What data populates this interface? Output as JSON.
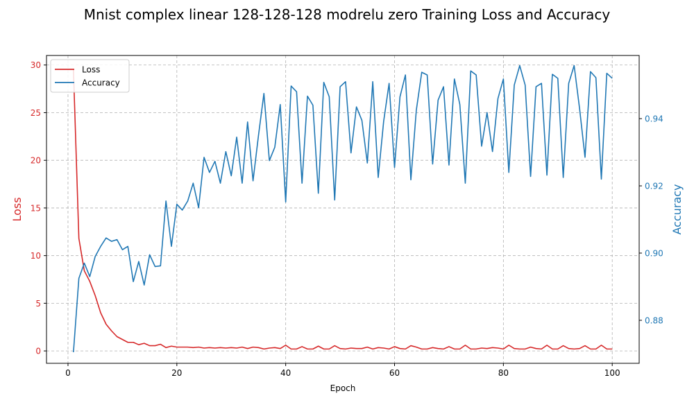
{
  "chart_data": {
    "type": "line",
    "title": "Mnist complex linear 128-128-128 modrelu zero Training Loss and Accuracy",
    "xlabel": "Epoch",
    "ylabel_left": "Loss",
    "ylabel_right": "Accuracy",
    "xlim": [
      -3.95,
      104.95
    ],
    "ylim_left": [
      -1.3,
      31.0
    ],
    "ylim_right": [
      0.8672,
      0.9588
    ],
    "xticks": [
      0,
      20,
      40,
      60,
      80,
      100
    ],
    "yticks_left": [
      0,
      5,
      10,
      15,
      20,
      25,
      30
    ],
    "yticks_right": [
      0.88,
      0.9,
      0.92,
      0.94
    ],
    "grid": true,
    "legend_position": "top-left",
    "colors": {
      "loss": "#d62728",
      "accuracy": "#1f77b4"
    },
    "series": [
      {
        "name": "Loss",
        "axis": "left",
        "color": "#d62728",
        "x_start": 1,
        "values": [
          29.5,
          11.8,
          8.4,
          7.3,
          5.8,
          4.0,
          2.8,
          2.1,
          1.5,
          1.2,
          0.9,
          0.9,
          0.65,
          0.8,
          0.55,
          0.55,
          0.7,
          0.35,
          0.5,
          0.4,
          0.4,
          0.4,
          0.35,
          0.4,
          0.3,
          0.35,
          0.3,
          0.35,
          0.3,
          0.35,
          0.3,
          0.4,
          0.25,
          0.4,
          0.35,
          0.2,
          0.3,
          0.35,
          0.25,
          0.6,
          0.2,
          0.2,
          0.45,
          0.2,
          0.2,
          0.5,
          0.2,
          0.2,
          0.55,
          0.25,
          0.2,
          0.3,
          0.25,
          0.25,
          0.4,
          0.2,
          0.35,
          0.3,
          0.2,
          0.45,
          0.25,
          0.2,
          0.55,
          0.4,
          0.2,
          0.2,
          0.35,
          0.25,
          0.2,
          0.45,
          0.2,
          0.2,
          0.6,
          0.2,
          0.2,
          0.3,
          0.25,
          0.35,
          0.3,
          0.2,
          0.6,
          0.25,
          0.2,
          0.2,
          0.4,
          0.25,
          0.2,
          0.6,
          0.2,
          0.2,
          0.55,
          0.25,
          0.2,
          0.25,
          0.55,
          0.2,
          0.2,
          0.6,
          0.2,
          0.2
        ]
      },
      {
        "name": "Accuracy",
        "axis": "right",
        "color": "#1f77b4",
        "x_start": 1,
        "values": [
          0.8705,
          0.8925,
          0.897,
          0.893,
          0.899,
          0.902,
          0.9045,
          0.9035,
          0.904,
          0.901,
          0.902,
          0.8915,
          0.8975,
          0.8905,
          0.8995,
          0.896,
          0.8962,
          0.9155,
          0.902,
          0.9145,
          0.9128,
          0.9155,
          0.9208,
          0.9135,
          0.9285,
          0.924,
          0.9273,
          0.9208,
          0.9302,
          0.923,
          0.9345,
          0.9208,
          0.939,
          0.9215,
          0.935,
          0.9475,
          0.9275,
          0.9315,
          0.9442,
          0.9152,
          0.9497,
          0.948,
          0.9208,
          0.9467,
          0.944,
          0.9178,
          0.9508,
          0.9465,
          0.9158,
          0.9495,
          0.951,
          0.9298,
          0.9435,
          0.9395,
          0.9268,
          0.951,
          0.9225,
          0.9392,
          0.9505,
          0.9255,
          0.9465,
          0.953,
          0.9218,
          0.9425,
          0.9538,
          0.953,
          0.9265,
          0.9455,
          0.9495,
          0.9262,
          0.9518,
          0.9442,
          0.9208,
          0.9542,
          0.953,
          0.9318,
          0.9418,
          0.9302,
          0.946,
          0.9518,
          0.924,
          0.95,
          0.9558,
          0.95,
          0.9228,
          0.9495,
          0.9505,
          0.9232,
          0.9532,
          0.952,
          0.9225,
          0.9505,
          0.9558,
          0.943,
          0.9285,
          0.954,
          0.9522,
          0.922,
          0.9535,
          0.952
        ]
      }
    ]
  }
}
